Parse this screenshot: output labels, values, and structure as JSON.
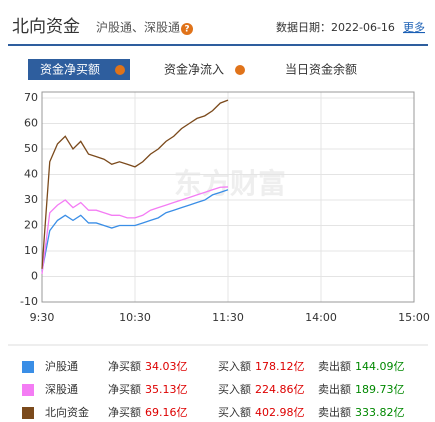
{
  "header": {
    "title": "北向资金",
    "subtitle": "沪股通、深股通",
    "help": "?",
    "date": "数据日期：2022-06-16",
    "more": "更多"
  },
  "tabs": [
    "资金净买额",
    "资金净流入",
    "当日资金余额"
  ],
  "watermark": "东方财富",
  "chart_data": {
    "type": "line",
    "x": [
      0,
      5,
      10,
      15,
      20,
      25,
      30,
      35,
      40,
      45,
      50,
      55,
      60,
      65,
      70,
      75,
      80,
      85,
      90,
      95,
      100,
      105,
      110,
      115,
      120
    ],
    "xlim": [
      0,
      240
    ],
    "xticks": [
      {
        "value": 0,
        "label": "9:30"
      },
      {
        "value": 60,
        "label": "10:30"
      },
      {
        "value": 120,
        "label": "11:30"
      },
      {
        "value": 180,
        "label": "14:00"
      },
      {
        "value": 240,
        "label": "15:00"
      }
    ],
    "ylim": [
      -10,
      70
    ],
    "yticks": [
      -10,
      0,
      10,
      20,
      30,
      40,
      50,
      60,
      70
    ],
    "grid": true,
    "series": [
      {
        "name": "沪股通",
        "color": "#3a8ee6",
        "values": [
          2,
          18,
          22,
          24,
          22,
          24,
          21,
          21,
          20,
          19,
          20,
          20,
          20,
          21,
          22,
          23,
          25,
          26,
          27,
          28,
          29,
          30,
          32,
          33,
          34.03
        ]
      },
      {
        "name": "深股通",
        "color": "#f47cf4",
        "values": [
          1,
          25,
          28,
          30,
          27,
          29,
          26,
          26,
          25,
          24,
          24,
          23,
          23,
          24,
          26,
          27,
          28,
          29,
          30,
          31,
          32,
          33,
          34,
          35,
          35.13
        ]
      },
      {
        "name": "北向资金",
        "color": "#7b4a1c",
        "values": [
          3,
          45,
          52,
          55,
          50,
          53,
          48,
          47,
          46,
          44,
          45,
          44,
          43,
          45,
          48,
          50,
          53,
          55,
          58,
          60,
          62,
          63,
          65,
          68,
          69.16
        ]
      }
    ]
  },
  "legend": {
    "rows": [
      {
        "net_label": "净买额",
        "net": "34.03亿",
        "buy_label": "买入额",
        "buy": "178.12亿",
        "sell_label": "卖出额",
        "sell": "144.09亿"
      },
      {
        "net_label": "净买额",
        "net": "35.13亿",
        "buy_label": "买入额",
        "buy": "224.86亿",
        "sell_label": "卖出额",
        "sell": "189.73亿"
      },
      {
        "net_label": "净买额",
        "net": "69.16亿",
        "buy_label": "买入额",
        "buy": "402.98亿",
        "sell_label": "卖出额",
        "sell": "333.82亿"
      }
    ]
  }
}
